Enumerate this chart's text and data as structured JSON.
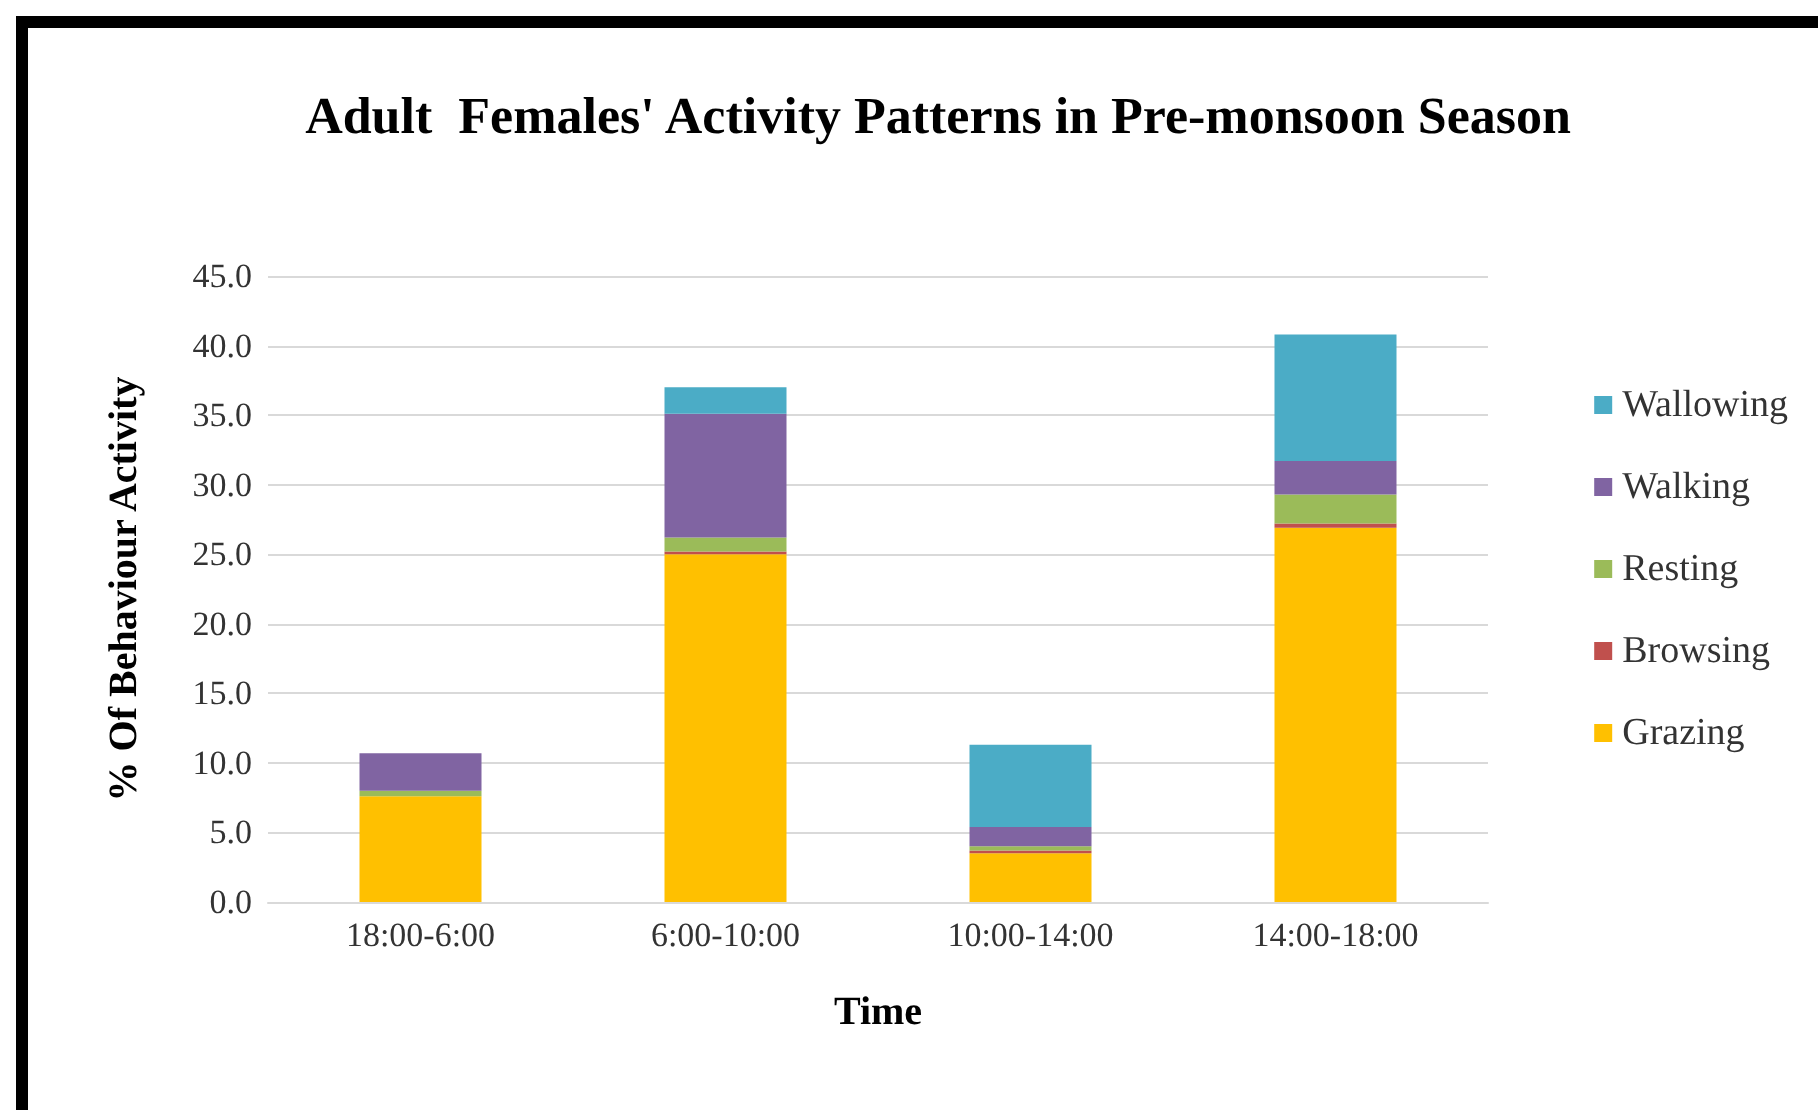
{
  "chart_data": {
    "type": "bar",
    "title": "Adult  Females' Activity Patterns in Pre-monsoon Season",
    "xlabel": "Time",
    "ylabel": "% Of Behaviour Activity",
    "categories": [
      "18:00-6:00",
      "6:00-10:00",
      "10:00-14:00",
      "14:00-18:00"
    ],
    "stacked": true,
    "series": [
      {
        "name": "Grazing",
        "color": "#ffc000",
        "values": [
          7.6,
          25.0,
          3.5,
          26.9
        ]
      },
      {
        "name": "Browsing",
        "color": "#c0504d",
        "values": [
          0,
          0.2,
          0.2,
          0.3
        ]
      },
      {
        "name": "Resting",
        "color": "#9bbb59",
        "values": [
          0.4,
          1.0,
          0.3,
          2.1
        ]
      },
      {
        "name": "Walking",
        "color": "#8064a2",
        "values": [
          2.7,
          8.9,
          1.4,
          2.4
        ]
      },
      {
        "name": "Wallowing",
        "color": "#4bacc6",
        "values": [
          0,
          1.9,
          5.9,
          9.1
        ]
      }
    ],
    "ylim": [
      0,
      45
    ],
    "yticks": [
      {
        "value": 0,
        "label": "0.0"
      },
      {
        "value": 5,
        "label": "5.0"
      },
      {
        "value": 10,
        "label": "10.0"
      },
      {
        "value": 15,
        "label": "15.0"
      },
      {
        "value": 20,
        "label": "20.0"
      },
      {
        "value": 25,
        "label": "25.0"
      },
      {
        "value": 30,
        "label": "30.0"
      },
      {
        "value": 35,
        "label": "35.0"
      },
      {
        "value": 40,
        "label": "40.0"
      },
      {
        "value": 45,
        "label": "45.0"
      }
    ],
    "grid": "y",
    "legend": "right"
  }
}
